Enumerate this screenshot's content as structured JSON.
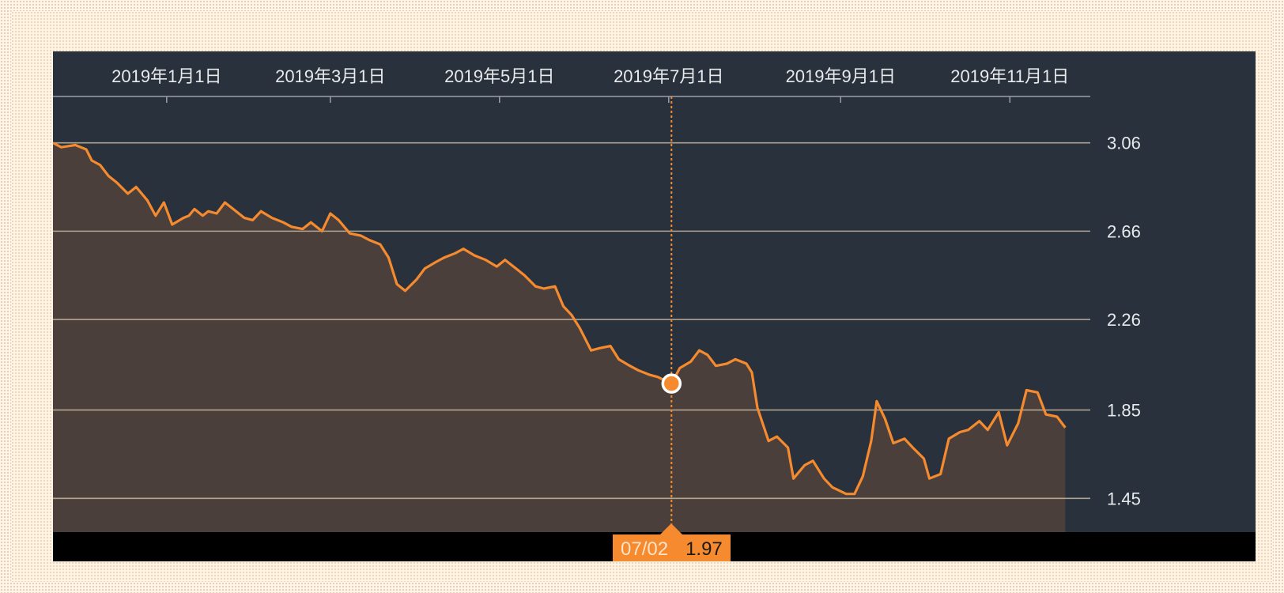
{
  "colors": {
    "line": "#f58a2e",
    "area": "#4a3f3b",
    "panel_background": "#28313c",
    "gridline": "#c9b7a0",
    "tooltip_background": "#f58a2e"
  },
  "tooltip": {
    "date": "07/02",
    "value": "1.97"
  },
  "chart_data": {
    "type": "area",
    "title": "",
    "xlabel": "",
    "ylabel": "",
    "x_axis_position": "top",
    "y_axis_position": "right",
    "grid": true,
    "x_range": [
      "2018-11-21",
      "2019-11-30"
    ],
    "y_range": [
      1.29,
      3.27
    ],
    "x_tick_labels": [
      {
        "date": "2019-01-01",
        "label": "2019年1月1日"
      },
      {
        "date": "2019-03-01",
        "label": "2019年3月1日"
      },
      {
        "date": "2019-05-01",
        "label": "2019年5月1日"
      },
      {
        "date": "2019-07-01",
        "label": "2019年7月1日"
      },
      {
        "date": "2019-09-01",
        "label": "2019年9月1日"
      },
      {
        "date": "2019-11-01",
        "label": "2019年11月1日"
      }
    ],
    "y_ticks": [
      {
        "value": 3.06,
        "label": "3.06"
      },
      {
        "value": 2.66,
        "label": "2.66"
      },
      {
        "value": 2.26,
        "label": "2.26"
      },
      {
        "value": 1.85,
        "label": "1.85"
      },
      {
        "value": 1.45,
        "label": "1.45"
      }
    ],
    "highlight": {
      "date": "2019-07-02",
      "value": 1.97
    },
    "series": [
      {
        "points": [
          [
            "2018-11-21",
            3.06
          ],
          [
            "2018-11-24",
            3.04
          ],
          [
            "2018-11-29",
            3.05
          ],
          [
            "2018-12-03",
            3.03
          ],
          [
            "2018-12-05",
            2.98
          ],
          [
            "2018-12-08",
            2.96
          ],
          [
            "2018-12-11",
            2.91
          ],
          [
            "2018-12-14",
            2.88
          ],
          [
            "2018-12-18",
            2.83
          ],
          [
            "2018-12-21",
            2.86
          ],
          [
            "2018-12-25",
            2.8
          ],
          [
            "2018-12-28",
            2.73
          ],
          [
            "2018-12-31",
            2.79
          ],
          [
            "2019-01-03",
            2.69
          ],
          [
            "2019-01-07",
            2.72
          ],
          [
            "2019-01-09",
            2.73
          ],
          [
            "2019-01-11",
            2.76
          ],
          [
            "2019-01-14",
            2.73
          ],
          [
            "2019-01-16",
            2.75
          ],
          [
            "2019-01-19",
            2.74
          ],
          [
            "2019-01-22",
            2.79
          ],
          [
            "2019-01-25",
            2.76
          ],
          [
            "2019-01-29",
            2.72
          ],
          [
            "2019-02-01",
            2.71
          ],
          [
            "2019-02-04",
            2.75
          ],
          [
            "2019-02-08",
            2.72
          ],
          [
            "2019-02-12",
            2.7
          ],
          [
            "2019-02-15",
            2.68
          ],
          [
            "2019-02-19",
            2.67
          ],
          [
            "2019-02-22",
            2.7
          ],
          [
            "2019-02-26",
            2.66
          ],
          [
            "2019-03-01",
            2.74
          ],
          [
            "2019-03-04",
            2.71
          ],
          [
            "2019-03-08",
            2.65
          ],
          [
            "2019-03-12",
            2.64
          ],
          [
            "2019-03-15",
            2.62
          ],
          [
            "2019-03-19",
            2.6
          ],
          [
            "2019-03-22",
            2.54
          ],
          [
            "2019-03-25",
            2.42
          ],
          [
            "2019-03-28",
            2.39
          ],
          [
            "2019-04-01",
            2.44
          ],
          [
            "2019-04-04",
            2.49
          ],
          [
            "2019-04-08",
            2.52
          ],
          [
            "2019-04-11",
            2.54
          ],
          [
            "2019-04-15",
            2.56
          ],
          [
            "2019-04-18",
            2.58
          ],
          [
            "2019-04-22",
            2.55
          ],
          [
            "2019-04-26",
            2.53
          ],
          [
            "2019-04-30",
            2.5
          ],
          [
            "2019-05-03",
            2.53
          ],
          [
            "2019-05-07",
            2.49
          ],
          [
            "2019-05-10",
            2.46
          ],
          [
            "2019-05-14",
            2.41
          ],
          [
            "2019-05-17",
            2.4
          ],
          [
            "2019-05-21",
            2.41
          ],
          [
            "2019-05-24",
            2.32
          ],
          [
            "2019-05-27",
            2.28
          ],
          [
            "2019-05-30",
            2.22
          ],
          [
            "2019-06-03",
            2.12
          ],
          [
            "2019-06-06",
            2.13
          ],
          [
            "2019-06-10",
            2.14
          ],
          [
            "2019-06-13",
            2.08
          ],
          [
            "2019-06-17",
            2.05
          ],
          [
            "2019-06-20",
            2.03
          ],
          [
            "2019-06-24",
            2.01
          ],
          [
            "2019-06-27",
            2.0
          ],
          [
            "2019-07-02",
            1.97
          ],
          [
            "2019-07-05",
            2.04
          ],
          [
            "2019-07-09",
            2.07
          ],
          [
            "2019-07-12",
            2.12
          ],
          [
            "2019-07-15",
            2.1
          ],
          [
            "2019-07-18",
            2.05
          ],
          [
            "2019-07-22",
            2.06
          ],
          [
            "2019-07-25",
            2.08
          ],
          [
            "2019-07-29",
            2.06
          ],
          [
            "2019-07-31",
            2.02
          ],
          [
            "2019-08-02",
            1.86
          ],
          [
            "2019-08-06",
            1.71
          ],
          [
            "2019-08-09",
            1.73
          ],
          [
            "2019-08-13",
            1.68
          ],
          [
            "2019-08-15",
            1.54
          ],
          [
            "2019-08-19",
            1.6
          ],
          [
            "2019-08-22",
            1.62
          ],
          [
            "2019-08-26",
            1.54
          ],
          [
            "2019-08-29",
            1.5
          ],
          [
            "2019-09-03",
            1.47
          ],
          [
            "2019-09-06",
            1.47
          ],
          [
            "2019-09-09",
            1.55
          ],
          [
            "2019-09-12",
            1.71
          ],
          [
            "2019-09-14",
            1.89
          ],
          [
            "2019-09-17",
            1.81
          ],
          [
            "2019-09-20",
            1.7
          ],
          [
            "2019-09-24",
            1.72
          ],
          [
            "2019-09-27",
            1.68
          ],
          [
            "2019-10-01",
            1.63
          ],
          [
            "2019-10-03",
            1.54
          ],
          [
            "2019-10-07",
            1.56
          ],
          [
            "2019-10-10",
            1.72
          ],
          [
            "2019-10-14",
            1.75
          ],
          [
            "2019-10-17",
            1.76
          ],
          [
            "2019-10-21",
            1.8
          ],
          [
            "2019-10-24",
            1.76
          ],
          [
            "2019-10-28",
            1.84
          ],
          [
            "2019-10-31",
            1.69
          ],
          [
            "2019-11-04",
            1.79
          ],
          [
            "2019-11-07",
            1.94
          ],
          [
            "2019-11-11",
            1.93
          ],
          [
            "2019-11-14",
            1.83
          ],
          [
            "2019-11-18",
            1.82
          ],
          [
            "2019-11-21",
            1.77
          ]
        ]
      }
    ]
  }
}
